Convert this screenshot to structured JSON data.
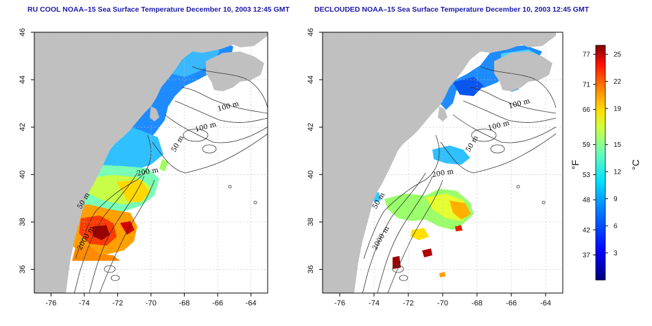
{
  "panels": [
    {
      "title": "RU COOL NOAA–15 Sea Surface Temperature December 10, 2003 12:45 GMT",
      "x_ticks": [
        "-76",
        "-74",
        "-72",
        "-70",
        "-68",
        "-66",
        "-64"
      ],
      "y_ticks": [
        "46",
        "44",
        "42",
        "40",
        "38",
        "36"
      ],
      "contour_labels": [
        "100 m",
        "100 m",
        "50 m",
        "200 m",
        "50 m",
        "2000 m"
      ]
    },
    {
      "title": "DECLOUDED NOAA–15 Sea Surface Temperature December 10, 2003 12:45 GMT",
      "x_ticks": [
        "-76",
        "-74",
        "-72",
        "-70",
        "-68",
        "-66",
        "-64"
      ],
      "y_ticks": [
        "46",
        "44",
        "42",
        "40",
        "38",
        "36"
      ],
      "contour_labels": [
        "100 m",
        "100 m",
        "50 m",
        "200 m",
        "50 m",
        "2000 m"
      ]
    }
  ],
  "colorbar": {
    "fahrenheit_ticks": [
      "77",
      "71",
      "66",
      "59",
      "53",
      "48",
      "42",
      "37"
    ],
    "celsius_ticks": [
      "25",
      "22",
      "19",
      "15",
      "12",
      "9",
      "6",
      "3"
    ],
    "fahrenheit_label": "°F",
    "celsius_label": "°C",
    "range_c": [
      0,
      26
    ]
  },
  "colors": {
    "land": "#c0c0c0",
    "title": "#1a1aa8",
    "grid": "#bbbbbb"
  }
}
